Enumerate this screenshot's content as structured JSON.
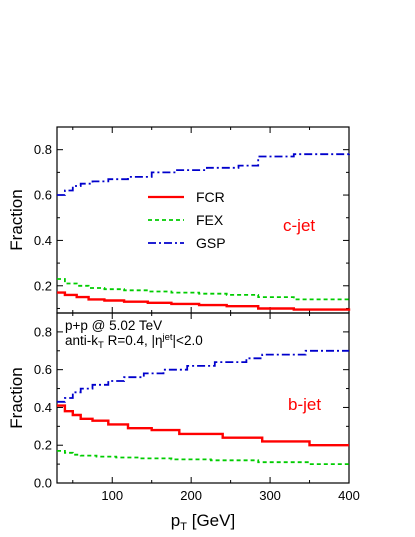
{
  "chart_data": [
    {
      "type": "line",
      "panel": "top",
      "xlim": [
        30,
        400
      ],
      "ylim": [
        0.08,
        0.9
      ],
      "yticks": [
        0.2,
        0.4,
        0.6,
        0.8
      ],
      "ytick_labels": [
        "0.2",
        "0.4",
        "0.6",
        "0.8"
      ],
      "ylabel": "Fraction",
      "xlabel": "",
      "tag": "c-jet",
      "tag_color": "#ff0000",
      "legend_position": "middle-left",
      "series": [
        {
          "name": "FCR",
          "color": "#ff0000",
          "dash": "solid",
          "x": [
            30,
            40,
            55,
            70,
            90,
            115,
            145,
            175,
            210,
            245,
            285,
            330,
            400
          ],
          "y": [
            0.17,
            0.16,
            0.15,
            0.14,
            0.135,
            0.13,
            0.125,
            0.12,
            0.115,
            0.11,
            0.1,
            0.095,
            0.09
          ]
        },
        {
          "name": "FEX",
          "color": "#00cc00",
          "dash": "dashed",
          "x": [
            30,
            40,
            55,
            70,
            90,
            115,
            145,
            175,
            210,
            245,
            285,
            330,
            400
          ],
          "y": [
            0.23,
            0.21,
            0.2,
            0.19,
            0.185,
            0.18,
            0.175,
            0.17,
            0.165,
            0.16,
            0.15,
            0.14,
            0.13
          ]
        },
        {
          "name": "GSP",
          "color": "#0000cc",
          "dash": "dashdot",
          "x": [
            30,
            40,
            50,
            60,
            75,
            95,
            120,
            150,
            180,
            220,
            260,
            285,
            330,
            400
          ],
          "y": [
            0.6,
            0.62,
            0.64,
            0.65,
            0.66,
            0.67,
            0.68,
            0.7,
            0.71,
            0.72,
            0.73,
            0.77,
            0.78,
            0.79
          ]
        }
      ]
    },
    {
      "type": "line",
      "panel": "bottom",
      "xlim": [
        30,
        400
      ],
      "ylim": [
        0.0,
        0.9
      ],
      "xticks": [
        100,
        200,
        300,
        400
      ],
      "xtick_labels": [
        "100",
        "200",
        "300",
        "400"
      ],
      "yticks": [
        0.0,
        0.2,
        0.4,
        0.6,
        0.8
      ],
      "ytick_labels": [
        "0.0",
        "0.2",
        "0.4",
        "0.6",
        "0.8"
      ],
      "ylabel": "Fraction",
      "xlabel": "p_T [GeV]",
      "tag": "b-jet",
      "tag_color": "#ff0000",
      "series": [
        {
          "name": "FCR",
          "color": "#ff0000",
          "dash": "solid",
          "x": [
            30,
            40,
            50,
            60,
            75,
            95,
            120,
            150,
            185,
            240,
            290,
            350,
            400
          ],
          "y": [
            0.41,
            0.38,
            0.36,
            0.34,
            0.33,
            0.31,
            0.29,
            0.28,
            0.26,
            0.24,
            0.22,
            0.2,
            0.2
          ]
        },
        {
          "name": "FEX",
          "color": "#00cc00",
          "dash": "dashed",
          "x": [
            30,
            40,
            50,
            60,
            80,
            105,
            135,
            175,
            225,
            285,
            350,
            400
          ],
          "y": [
            0.17,
            0.16,
            0.15,
            0.145,
            0.14,
            0.135,
            0.13,
            0.125,
            0.12,
            0.11,
            0.1,
            0.1
          ]
        },
        {
          "name": "GSP",
          "color": "#0000cc",
          "dash": "dashdot",
          "x": [
            30,
            40,
            50,
            60,
            75,
            95,
            115,
            140,
            165,
            195,
            230,
            270,
            290,
            345,
            400
          ],
          "y": [
            0.43,
            0.45,
            0.48,
            0.5,
            0.52,
            0.54,
            0.56,
            0.58,
            0.6,
            0.62,
            0.64,
            0.66,
            0.68,
            0.7,
            0.7
          ]
        }
      ]
    }
  ],
  "annotations": {
    "line1": "p+p @ 5.02 TeV",
    "line2_pre": "anti-k",
    "line2_sub": "T",
    "line2_mid": " R=0.4, |η",
    "line2_sup": "jet",
    "line2_post": "|<2.0"
  },
  "xlabel_parts": {
    "main": "p",
    "sub": "T",
    "rest": " [GeV]"
  }
}
